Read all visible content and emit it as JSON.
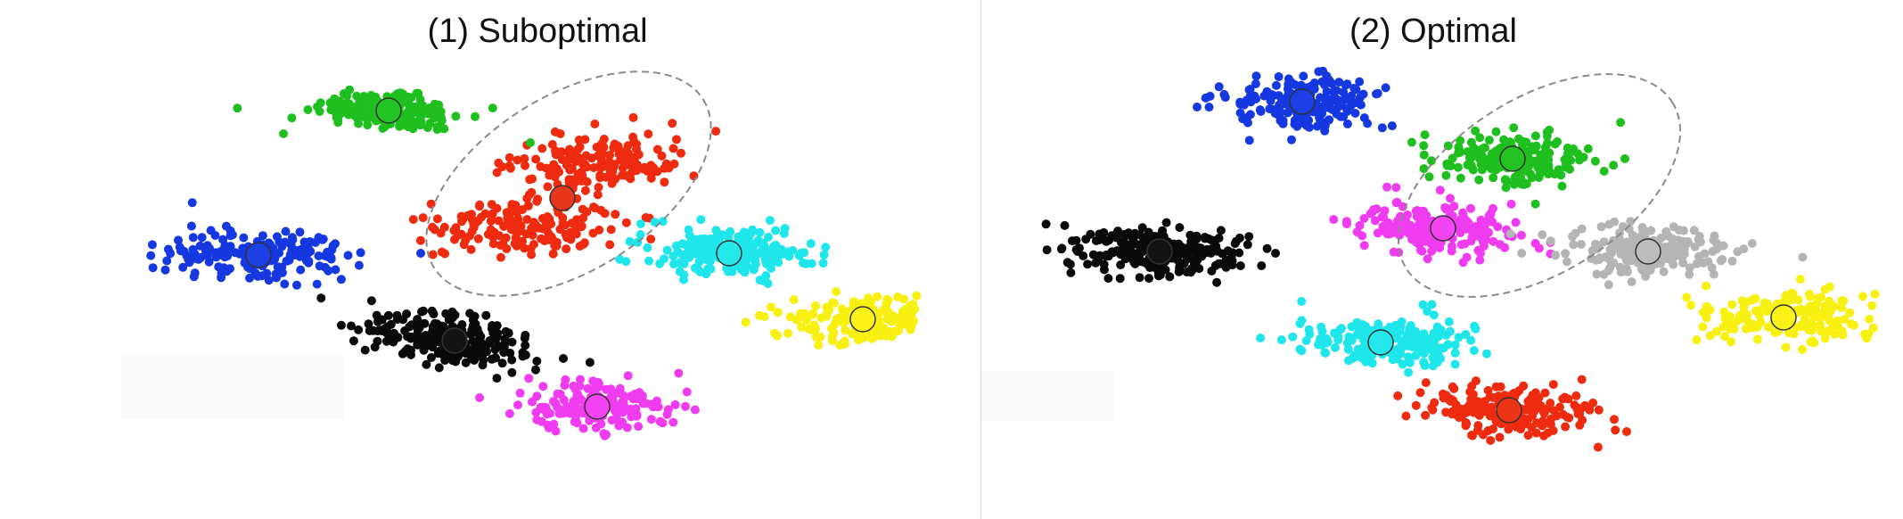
{
  "panels": [
    {
      "title": "(1) Suboptimal",
      "clusters": [
        {
          "color": "green",
          "fill": "#1fbf1f",
          "centroid_fill": "#22c322",
          "n": 170
        },
        {
          "color": "blue",
          "fill": "#1538e0",
          "centroid_fill": "#1c3fe6",
          "n": 190
        },
        {
          "color": "red",
          "fill": "#ee2a0f",
          "centroid_fill": null,
          "n": 330
        },
        {
          "color": "cyan",
          "fill": "#1fe6ea",
          "centroid_fill": "#24e8ec",
          "n": 200
        },
        {
          "color": "yellow",
          "fill": "#f8f011",
          "centroid_fill": "#fbf218",
          "n": 170
        },
        {
          "color": "black",
          "fill": "#0a0a0a",
          "centroid_fill": "#141414",
          "n": 230
        },
        {
          "color": "magenta",
          "fill": "#f03cf0",
          "centroid_fill": "#f244f2",
          "n": 180
        }
      ],
      "merged_centroid": {
        "color": "red",
        "fill": "#e8361c"
      },
      "highlight": "dashed ellipse around the merged red cluster"
    },
    {
      "title": "(2) Optimal",
      "clusters": [
        {
          "color": "blue",
          "fill": "#1538e0",
          "centroid_fill": "#1c3fe6",
          "n": 190
        },
        {
          "color": "green",
          "fill": "#1fbf1f",
          "centroid_fill": "#22c322",
          "n": 190
        },
        {
          "color": "magenta",
          "fill": "#f03cf0",
          "centroid_fill": "#f244f2",
          "n": 190
        },
        {
          "color": "black",
          "fill": "#0a0a0a",
          "centroid_fill": "#141414",
          "n": 240
        },
        {
          "color": "gray",
          "fill": "#b4b4b4",
          "centroid_fill": "#bcbcbc",
          "n": 190
        },
        {
          "color": "yellow",
          "fill": "#f8f011",
          "centroid_fill": "#fbf218",
          "n": 170
        },
        {
          "color": "cyan",
          "fill": "#1fe6ea",
          "centroid_fill": "#24e8ec",
          "n": 200
        },
        {
          "color": "red",
          "fill": "#ee2a0f",
          "centroid_fill": "#ee3417",
          "n": 200
        }
      ],
      "highlight": "dashed ellipse around the green and magenta clusters"
    }
  ]
}
